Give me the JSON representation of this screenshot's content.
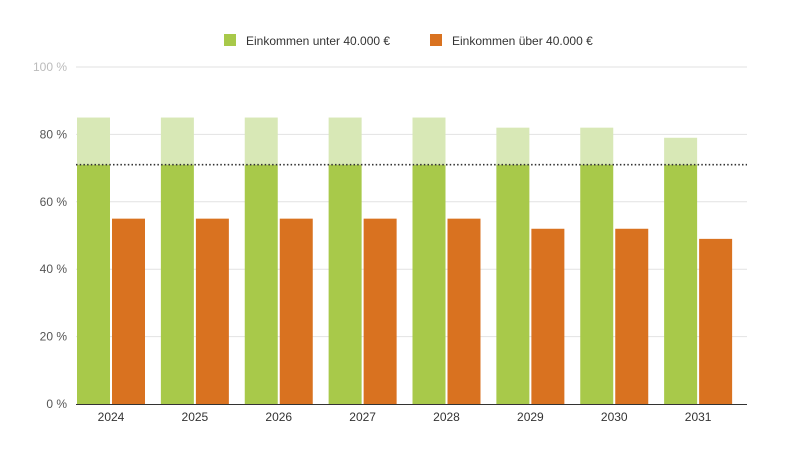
{
  "chart_data": {
    "type": "bar",
    "categories": [
      "2024",
      "2025",
      "2026",
      "2027",
      "2028",
      "2029",
      "2030",
      "2031"
    ],
    "series": [
      {
        "name": "Einkommen unter 40.000 €",
        "color": "#a8c94a",
        "light_color": "#d8e8b6",
        "values": [
          85,
          85,
          85,
          85,
          85,
          82,
          82,
          79
        ],
        "highlighted_up_to": 71
      },
      {
        "name": "Einkommen über 40.000 €",
        "color": "#d97220",
        "values": [
          55,
          55,
          55,
          55,
          55,
          52,
          52,
          49
        ]
      }
    ],
    "reference_line": {
      "value": 71,
      "style": "dotted",
      "color": "#333333"
    },
    "ylim": [
      0,
      100
    ],
    "yticks": [
      0,
      20,
      40,
      60,
      80,
      100
    ],
    "ytick_labels": [
      "0 %",
      "20 %",
      "40 %",
      "60 %",
      "80 %",
      "100 %"
    ],
    "grid": true,
    "legend_position": "top-center"
  }
}
